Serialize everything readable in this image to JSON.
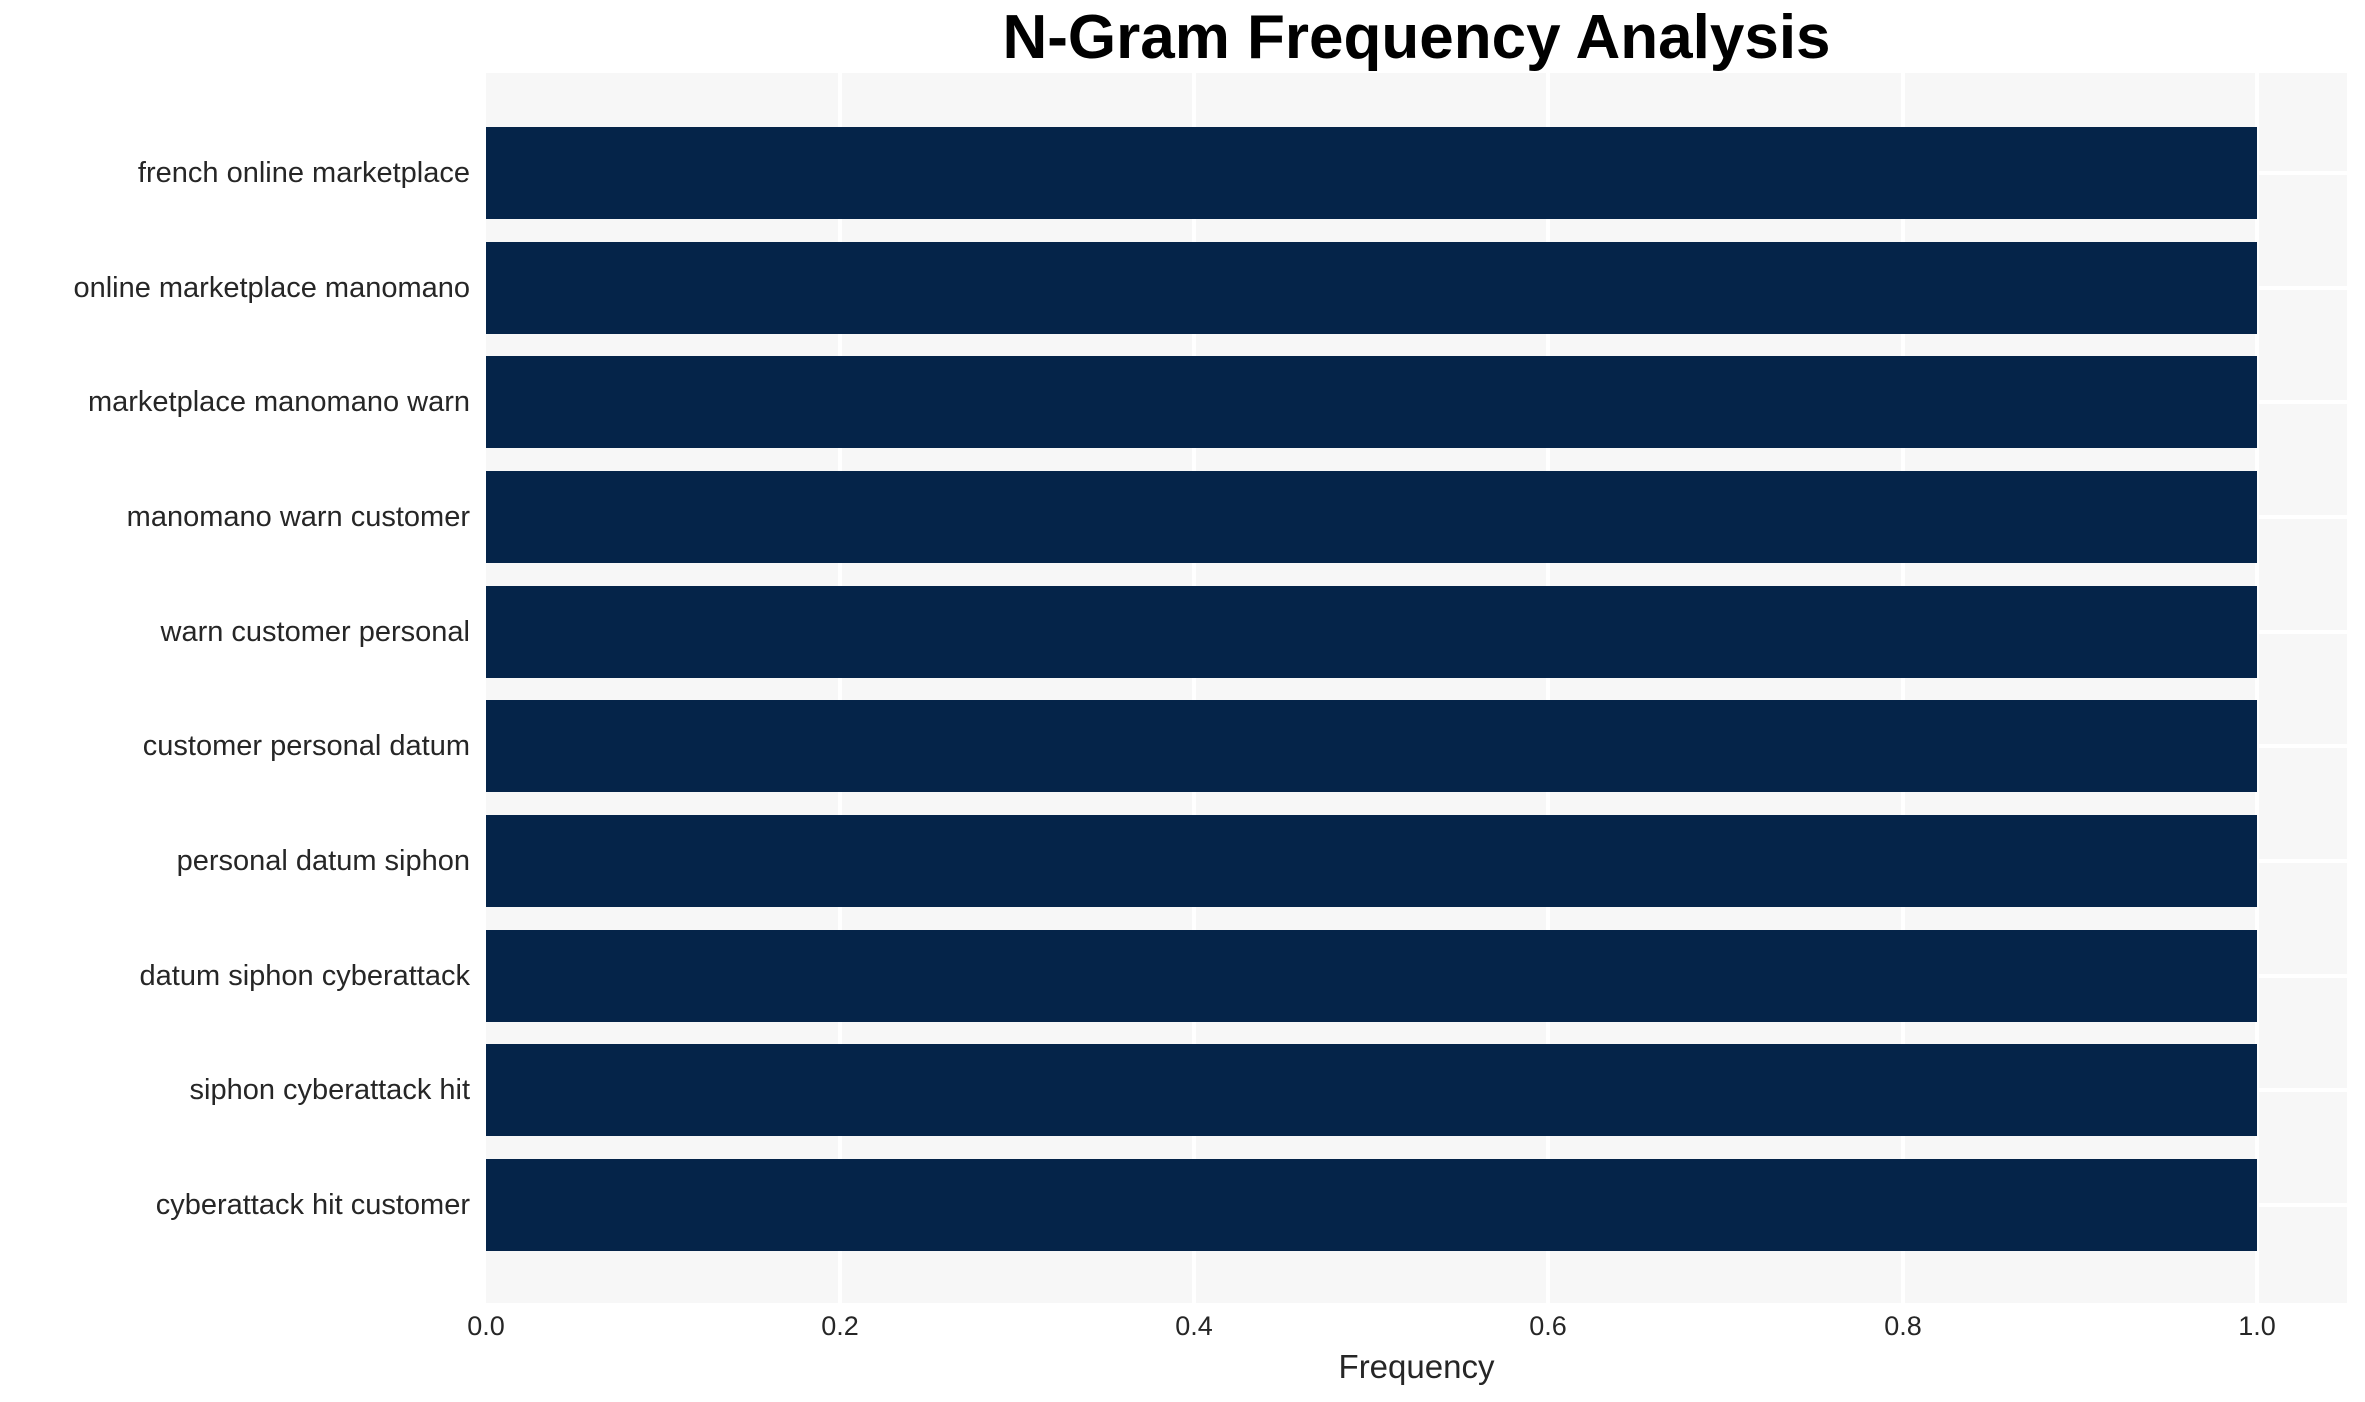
{
  "chart_data": {
    "type": "bar",
    "orientation": "horizontal",
    "title": "N-Gram Frequency Analysis",
    "xlabel": "Frequency",
    "ylabel": "",
    "categories": [
      "french online marketplace",
      "online marketplace manomano",
      "marketplace manomano warn",
      "manomano warn customer",
      "warn customer personal",
      "customer personal datum",
      "personal datum siphon",
      "datum siphon cyberattack",
      "siphon cyberattack hit",
      "cyberattack hit customer"
    ],
    "values": [
      1.0,
      1.0,
      1.0,
      1.0,
      1.0,
      1.0,
      1.0,
      1.0,
      1.0,
      1.0
    ],
    "xlim": [
      0,
      1.051
    ],
    "xticks": [
      0.0,
      0.2,
      0.4,
      0.6,
      0.8,
      1.0
    ],
    "xtick_labels": [
      "0.0",
      "0.2",
      "0.4",
      "0.6",
      "0.8",
      "1.0"
    ],
    "grid": true,
    "legend": false,
    "colors": {
      "bar": "#052449",
      "plot_bg": "#f7f7f7",
      "grid": "#ffffff",
      "page_bg": "#ffffff",
      "tick_text": "#262626",
      "title_text": "#000000"
    }
  }
}
